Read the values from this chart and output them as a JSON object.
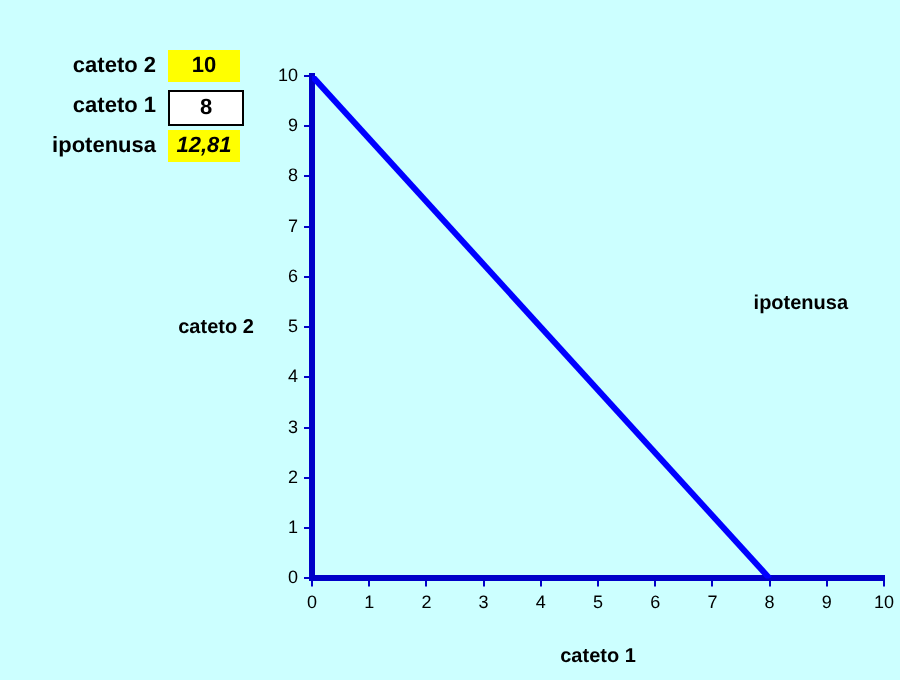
{
  "chart_data": {
    "type": "line",
    "x": [
      0,
      8
    ],
    "series": [
      {
        "name": "ipotenusa",
        "color": "#0000ff",
        "values": [
          10,
          0
        ]
      }
    ],
    "xlabel": "cateto 1",
    "ylabel": "cateto 2",
    "xlim": [
      0,
      10
    ],
    "xticks": [
      0,
      1,
      2,
      3,
      4,
      5,
      6,
      7,
      8,
      9,
      10
    ],
    "ylim": [
      0,
      10
    ],
    "yticks": [
      0,
      1,
      2,
      3,
      4,
      5,
      6,
      7,
      8,
      9,
      10
    ],
    "grid": false,
    "legend": false,
    "marker": "none",
    "line_style": "solid",
    "annotations": [
      "cateto 2",
      "10",
      "cateto 1",
      "8",
      "ipotenusa",
      "12,81"
    ]
  }
}
